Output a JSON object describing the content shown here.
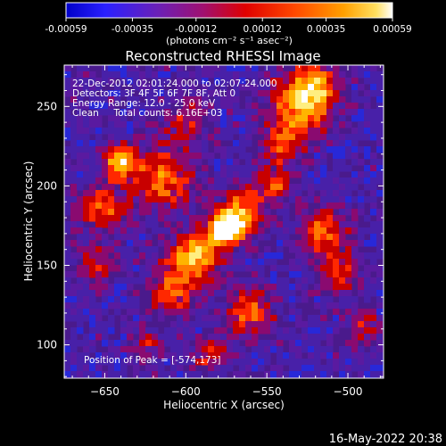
{
  "colorbar": {
    "tick_labels": [
      "-0.00059",
      "-0.00035",
      "-0.00012",
      "0.00012",
      "0.00035",
      "0.00059"
    ],
    "range": [
      -0.00059,
      0.00059
    ],
    "unit_label": "(photons cm⁻² s⁻¹ asec⁻²)"
  },
  "chart_data": {
    "type": "heatmap",
    "title": "Reconstructed RHESSI Image",
    "xlabel": "Heliocentric X (arcsec)",
    "ylabel": "Heliocentric Y (arcsec)",
    "xlim": [
      -675,
      -478
    ],
    "ylim": [
      79,
      276
    ],
    "x_ticks": [
      -650,
      -600,
      -550,
      -500
    ],
    "x_tick_labels": [
      "−650",
      "−600",
      "−550",
      "−500"
    ],
    "y_ticks": [
      100,
      150,
      200,
      250
    ],
    "y_tick_labels": [
      "100",
      "150",
      "200",
      "250"
    ],
    "colormap": [
      "#0000a0",
      "#2828d8",
      "#4820a8",
      "#5a1aa0",
      "#8a0a70",
      "#c80000",
      "#ff2800",
      "#ff7800",
      "#ffb400",
      "#ffee80",
      "#ffffff"
    ],
    "annotations": [
      "22-Dec-2012 02:01:24.000 to 02:07:24.000",
      "Detectors: 3F 4F 5F 6F 7F 8F, Att 0",
      "Energy Range: 12.0 - 25.0 keV",
      "Clean     Total counts: 6.16E+03"
    ],
    "peak_label": "Position of Peak = [-574,173]",
    "peak": {
      "x": -574,
      "y": 173
    },
    "grid": false
  },
  "footer": {
    "timestamp": "16-May-2022 20:38"
  }
}
